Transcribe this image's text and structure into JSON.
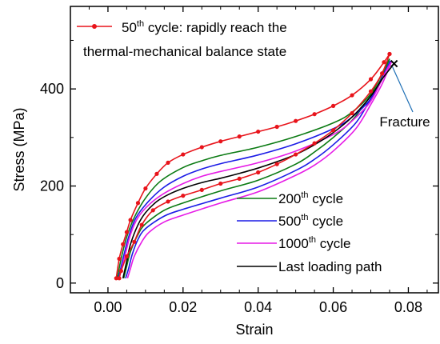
{
  "chart_data": {
    "type": "line",
    "xlabel": "Strain",
    "ylabel": "Stress (MPa)",
    "xlim": [
      -0.01,
      0.088
    ],
    "ylim": [
      -20,
      570
    ],
    "x_ticks": [
      "0.00",
      "0.02",
      "0.04",
      "0.06",
      "0.08"
    ],
    "y_ticks": [
      "0",
      "200",
      "400"
    ],
    "x_tick_values": [
      0.0,
      0.02,
      0.04,
      0.06,
      0.08
    ],
    "y_tick_values": [
      0,
      200,
      400
    ],
    "grid": false,
    "series": [
      {
        "key": "c50",
        "legend": {
          "pre": "50",
          "sup": "th",
          "post": " cycle: rapidly reach the",
          "line2": "thermal-mechanical balance state"
        },
        "color": "#e8141b",
        "markers": true,
        "loading": [
          [
            0.0022,
            10
          ],
          [
            0.003,
            50
          ],
          [
            0.004,
            80
          ],
          [
            0.005,
            105
          ],
          [
            0.006,
            130
          ],
          [
            0.008,
            165
          ],
          [
            0.01,
            195
          ],
          [
            0.013,
            225
          ],
          [
            0.016,
            248
          ],
          [
            0.02,
            265
          ],
          [
            0.025,
            280
          ],
          [
            0.03,
            292
          ],
          [
            0.035,
            302
          ],
          [
            0.04,
            312
          ],
          [
            0.045,
            322
          ],
          [
            0.05,
            334
          ],
          [
            0.055,
            348
          ],
          [
            0.06,
            365
          ],
          [
            0.065,
            387
          ],
          [
            0.07,
            420
          ],
          [
            0.0735,
            455
          ],
          [
            0.075,
            472
          ]
        ],
        "unloading": [
          [
            0.075,
            472
          ],
          [
            0.073,
            432
          ],
          [
            0.07,
            395
          ],
          [
            0.065,
            350
          ],
          [
            0.06,
            315
          ],
          [
            0.055,
            288
          ],
          [
            0.05,
            265
          ],
          [
            0.045,
            245
          ],
          [
            0.04,
            228
          ],
          [
            0.035,
            215
          ],
          [
            0.03,
            205
          ],
          [
            0.025,
            192
          ],
          [
            0.02,
            180
          ],
          [
            0.016,
            168
          ],
          [
            0.012,
            150
          ],
          [
            0.009,
            120
          ],
          [
            0.007,
            85
          ],
          [
            0.005,
            55
          ],
          [
            0.0035,
            25
          ],
          [
            0.003,
            10
          ]
        ]
      },
      {
        "key": "c200",
        "legend": {
          "pre": "200",
          "sup": "th",
          "post": " cycle"
        },
        "color": "#0a7a12",
        "markers": false,
        "loading": [
          [
            0.0025,
            10
          ],
          [
            0.0035,
            50
          ],
          [
            0.005,
            95
          ],
          [
            0.007,
            135
          ],
          [
            0.01,
            175
          ],
          [
            0.014,
            210
          ],
          [
            0.02,
            238
          ],
          [
            0.025,
            252
          ],
          [
            0.03,
            263
          ],
          [
            0.04,
            280
          ],
          [
            0.05,
            302
          ],
          [
            0.06,
            330
          ],
          [
            0.065,
            352
          ],
          [
            0.07,
            390
          ],
          [
            0.0735,
            440
          ],
          [
            0.075,
            462
          ]
        ],
        "unloading": [
          [
            0.075,
            462
          ],
          [
            0.072,
            410
          ],
          [
            0.068,
            365
          ],
          [
            0.065,
            335
          ],
          [
            0.06,
            300
          ],
          [
            0.055,
            270
          ],
          [
            0.05,
            245
          ],
          [
            0.04,
            212
          ],
          [
            0.03,
            190
          ],
          [
            0.02,
            165
          ],
          [
            0.015,
            150
          ],
          [
            0.01,
            122
          ],
          [
            0.008,
            100
          ],
          [
            0.006,
            65
          ],
          [
            0.005,
            35
          ],
          [
            0.0042,
            10
          ]
        ]
      },
      {
        "key": "c500",
        "legend": {
          "pre": "500",
          "sup": "th",
          "post": " cycle"
        },
        "color": "#1b1be6",
        "markers": false,
        "loading": [
          [
            0.0028,
            10
          ],
          [
            0.004,
            50
          ],
          [
            0.0055,
            95
          ],
          [
            0.0075,
            135
          ],
          [
            0.011,
            170
          ],
          [
            0.015,
            198
          ],
          [
            0.02,
            220
          ],
          [
            0.025,
            235
          ],
          [
            0.03,
            246
          ],
          [
            0.04,
            264
          ],
          [
            0.05,
            287
          ],
          [
            0.06,
            318
          ],
          [
            0.065,
            342
          ],
          [
            0.07,
            380
          ],
          [
            0.0738,
            436
          ],
          [
            0.0752,
            458
          ]
        ],
        "unloading": [
          [
            0.0752,
            458
          ],
          [
            0.073,
            420
          ],
          [
            0.07,
            380
          ],
          [
            0.066,
            330
          ],
          [
            0.06,
            285
          ],
          [
            0.055,
            255
          ],
          [
            0.05,
            232
          ],
          [
            0.04,
            198
          ],
          [
            0.03,
            175
          ],
          [
            0.02,
            152
          ],
          [
            0.015,
            138
          ],
          [
            0.01,
            112
          ],
          [
            0.008,
            90
          ],
          [
            0.0065,
            60
          ],
          [
            0.0055,
            30
          ],
          [
            0.0047,
            10
          ]
        ]
      },
      {
        "key": "c1000",
        "legend": {
          "pre": "1000",
          "sup": "th",
          "post": " cycle"
        },
        "color": "#e61be6",
        "markers": false,
        "loading": [
          [
            0.003,
            10
          ],
          [
            0.0045,
            55
          ],
          [
            0.006,
            100
          ],
          [
            0.008,
            135
          ],
          [
            0.011,
            162
          ],
          [
            0.015,
            185
          ],
          [
            0.02,
            205
          ],
          [
            0.025,
            220
          ],
          [
            0.03,
            230
          ],
          [
            0.04,
            248
          ],
          [
            0.05,
            272
          ],
          [
            0.06,
            306
          ],
          [
            0.065,
            334
          ],
          [
            0.07,
            375
          ],
          [
            0.074,
            436
          ],
          [
            0.0755,
            456
          ]
        ],
        "unloading": [
          [
            0.0755,
            456
          ],
          [
            0.073,
            410
          ],
          [
            0.07,
            368
          ],
          [
            0.066,
            318
          ],
          [
            0.06,
            272
          ],
          [
            0.055,
            243
          ],
          [
            0.05,
            222
          ],
          [
            0.04,
            188
          ],
          [
            0.03,
            165
          ],
          [
            0.02,
            140
          ],
          [
            0.015,
            126
          ],
          [
            0.011,
            105
          ],
          [
            0.009,
            85
          ],
          [
            0.007,
            55
          ],
          [
            0.006,
            30
          ],
          [
            0.0052,
            10
          ]
        ]
      },
      {
        "key": "last",
        "legend": {
          "pre": "Last loading path",
          "sup": "",
          "post": ""
        },
        "color": "#000000",
        "markers": false,
        "loading": [
          [
            0.004,
            10
          ],
          [
            0.005,
            45
          ],
          [
            0.006,
            80
          ],
          [
            0.008,
            120
          ],
          [
            0.01,
            145
          ],
          [
            0.013,
            168
          ],
          [
            0.016,
            182
          ],
          [
            0.02,
            195
          ],
          [
            0.025,
            207
          ],
          [
            0.03,
            216
          ],
          [
            0.035,
            226
          ],
          [
            0.04,
            237
          ],
          [
            0.045,
            250
          ],
          [
            0.05,
            265
          ],
          [
            0.055,
            285
          ],
          [
            0.06,
            310
          ],
          [
            0.065,
            342
          ],
          [
            0.07,
            385
          ],
          [
            0.073,
            420
          ],
          [
            0.0762,
            452
          ]
        ],
        "unloading": []
      }
    ],
    "fracture": {
      "label": "Fracture",
      "x": 0.0762,
      "y": 452
    }
  }
}
